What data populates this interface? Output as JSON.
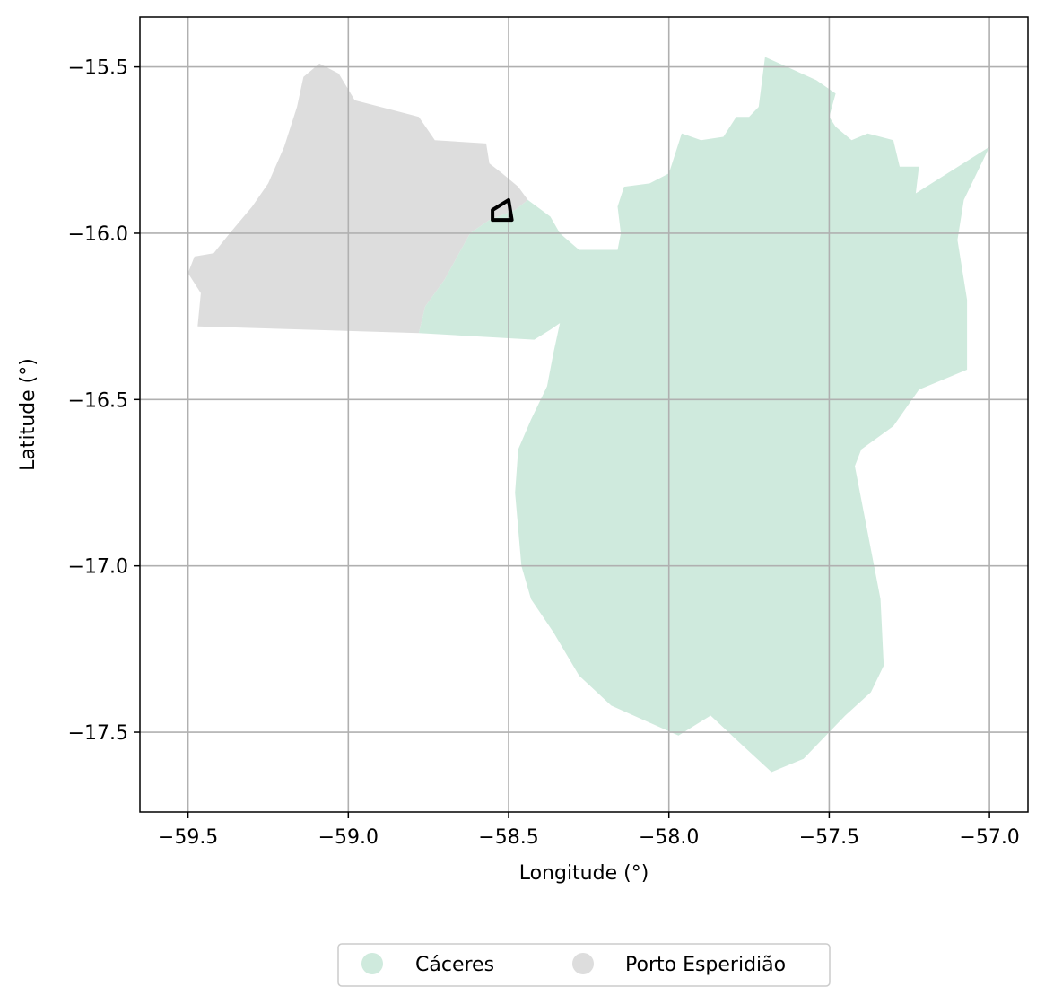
{
  "chart_data": {
    "type": "map",
    "xlabel": "Longitude (°)",
    "ylabel": "Latitude (°)",
    "xlim": [
      -59.65,
      -56.88
    ],
    "ylim": [
      -17.74,
      -15.35
    ],
    "grid": true,
    "x_ticks": [
      {
        "value": -59.5,
        "label": "−59.5"
      },
      {
        "value": -59.0,
        "label": "−59.0"
      },
      {
        "value": -58.5,
        "label": "−58.5"
      },
      {
        "value": -58.0,
        "label": "−58.0"
      },
      {
        "value": -57.5,
        "label": "−57.5"
      },
      {
        "value": -57.0,
        "label": "−57.0"
      }
    ],
    "y_ticks": [
      {
        "value": -15.5,
        "label": "−15.5"
      },
      {
        "value": -16.0,
        "label": "−16.0"
      },
      {
        "value": -16.5,
        "label": "−16.5"
      },
      {
        "value": -17.0,
        "label": "−17.0"
      },
      {
        "value": -17.5,
        "label": "−17.5"
      }
    ],
    "legend_placement": "bottom-center",
    "regions": [
      {
        "name": "Porto Esperidião",
        "color": "#dddddd",
        "outline": [
          [
            -59.47,
            -16.28
          ],
          [
            -58.78,
            -16.3
          ],
          [
            -58.76,
            -16.22
          ],
          [
            -58.7,
            -16.14
          ],
          [
            -58.66,
            -16.07
          ],
          [
            -58.62,
            -16.0
          ],
          [
            -58.56,
            -15.96
          ],
          [
            -58.48,
            -15.93
          ],
          [
            -58.44,
            -15.9
          ],
          [
            -58.47,
            -15.86
          ],
          [
            -58.52,
            -15.82
          ],
          [
            -58.56,
            -15.79
          ],
          [
            -58.57,
            -15.73
          ],
          [
            -58.73,
            -15.72
          ],
          [
            -58.78,
            -15.65
          ],
          [
            -58.9,
            -15.62
          ],
          [
            -58.98,
            -15.6
          ],
          [
            -59.03,
            -15.52
          ],
          [
            -59.09,
            -15.49
          ],
          [
            -59.14,
            -15.53
          ],
          [
            -59.16,
            -15.62
          ],
          [
            -59.2,
            -15.74
          ],
          [
            -59.25,
            -15.85
          ],
          [
            -59.3,
            -15.92
          ],
          [
            -59.37,
            -16.0
          ],
          [
            -59.42,
            -16.06
          ],
          [
            -59.48,
            -16.07
          ],
          [
            -59.5,
            -16.12
          ],
          [
            -59.46,
            -16.18
          ],
          [
            -59.47,
            -16.28
          ]
        ]
      },
      {
        "name": "Cáceres",
        "color": "#cfeadd",
        "outline": [
          [
            -58.78,
            -16.3
          ],
          [
            -58.42,
            -16.32
          ],
          [
            -58.37,
            -16.29
          ],
          [
            -58.34,
            -16.27
          ],
          [
            -58.36,
            -16.36
          ],
          [
            -58.38,
            -16.46
          ],
          [
            -58.43,
            -16.56
          ],
          [
            -58.47,
            -16.65
          ],
          [
            -58.48,
            -16.78
          ],
          [
            -58.46,
            -17.0
          ],
          [
            -58.43,
            -17.1
          ],
          [
            -58.36,
            -17.2
          ],
          [
            -58.28,
            -17.33
          ],
          [
            -58.18,
            -17.42
          ],
          [
            -58.04,
            -17.48
          ],
          [
            -57.97,
            -17.51
          ],
          [
            -57.87,
            -17.45
          ],
          [
            -57.77,
            -17.54
          ],
          [
            -57.68,
            -17.62
          ],
          [
            -57.58,
            -17.58
          ],
          [
            -57.52,
            -17.52
          ],
          [
            -57.45,
            -17.45
          ],
          [
            -57.37,
            -17.38
          ],
          [
            -57.33,
            -17.3
          ],
          [
            -57.34,
            -17.1
          ],
          [
            -57.38,
            -16.9
          ],
          [
            -57.42,
            -16.7
          ],
          [
            -57.4,
            -16.65
          ],
          [
            -57.3,
            -16.58
          ],
          [
            -57.22,
            -16.47
          ],
          [
            -57.07,
            -16.41
          ],
          [
            -57.07,
            -16.2
          ],
          [
            -57.1,
            -16.02
          ],
          [
            -57.08,
            -15.9
          ],
          [
            -57.0,
            -15.74
          ],
          [
            -57.23,
            -15.88
          ],
          [
            -57.22,
            -15.8
          ],
          [
            -57.28,
            -15.8
          ],
          [
            -57.3,
            -15.72
          ],
          [
            -57.38,
            -15.7
          ],
          [
            -57.43,
            -15.72
          ],
          [
            -57.48,
            -15.68
          ],
          [
            -57.5,
            -15.65
          ],
          [
            -57.48,
            -15.58
          ],
          [
            -57.54,
            -15.54
          ],
          [
            -57.7,
            -15.47
          ],
          [
            -57.72,
            -15.62
          ],
          [
            -57.75,
            -15.65
          ],
          [
            -57.79,
            -15.65
          ],
          [
            -57.83,
            -15.71
          ],
          [
            -57.9,
            -15.72
          ],
          [
            -57.96,
            -15.7
          ],
          [
            -58.0,
            -15.82
          ],
          [
            -58.06,
            -15.85
          ],
          [
            -58.14,
            -15.86
          ],
          [
            -58.16,
            -15.92
          ],
          [
            -58.15,
            -16.0
          ],
          [
            -58.16,
            -16.05
          ],
          [
            -58.28,
            -16.05
          ],
          [
            -58.34,
            -16.0
          ],
          [
            -58.37,
            -15.95
          ],
          [
            -58.44,
            -15.9
          ],
          [
            -58.48,
            -15.93
          ],
          [
            -58.56,
            -15.96
          ],
          [
            -58.62,
            -16.0
          ],
          [
            -58.66,
            -16.07
          ],
          [
            -58.7,
            -16.14
          ],
          [
            -58.76,
            -16.22
          ],
          [
            -58.78,
            -16.3
          ]
        ]
      }
    ],
    "marker_outline": [
      [
        -58.55,
        -15.93
      ],
      [
        -58.5,
        -15.9
      ],
      [
        -58.49,
        -15.96
      ],
      [
        -58.55,
        -15.96
      ],
      [
        -58.55,
        -15.93
      ]
    ],
    "legend": [
      {
        "label": "Cáceres",
        "color": "#cfeadd"
      },
      {
        "label": "Porto Esperidião",
        "color": "#dddddd"
      }
    ]
  }
}
